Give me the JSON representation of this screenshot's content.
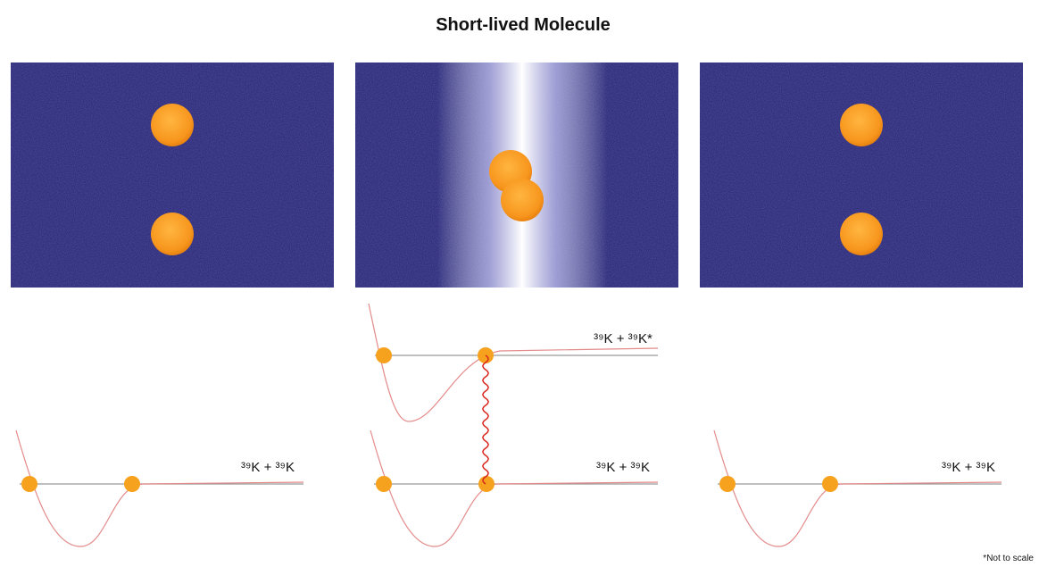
{
  "title": "Short-lived Molecule",
  "diagrams": [
    {
      "labels": [
        "³⁹K + ³⁹K"
      ]
    },
    {
      "labels": [
        "³⁹K + ³⁹K*",
        "³⁹K + ³⁹K"
      ]
    },
    {
      "labels": [
        "³⁹K + ³⁹K"
      ]
    }
  ],
  "footnote": "*Not to scale"
}
